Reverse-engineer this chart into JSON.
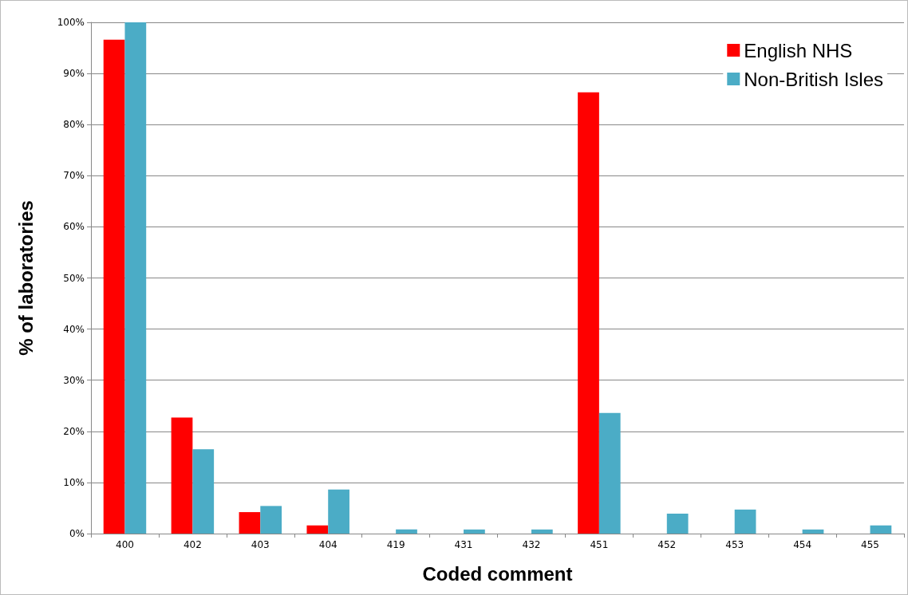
{
  "chart_data": {
    "type": "bar",
    "xlabel": "Coded comment",
    "ylabel": "% of laboratories",
    "categories": [
      "400",
      "402",
      "403",
      "404",
      "419",
      "431",
      "432",
      "451",
      "452",
      "453",
      "454",
      "455"
    ],
    "series": [
      {
        "name": "English NHS",
        "color": "#ff0000",
        "values": [
          96.6,
          22.7,
          4.2,
          1.6,
          0,
          0,
          0,
          86.3,
          0,
          0,
          0,
          0
        ]
      },
      {
        "name": "Non-British Isles",
        "color": "#4bacc6",
        "values": [
          100,
          16.5,
          5.4,
          8.6,
          0.8,
          0.8,
          0.8,
          23.6,
          3.9,
          4.7,
          0.8,
          1.6
        ]
      }
    ],
    "ylim": [
      0,
      100
    ],
    "yticks": [
      {
        "value": 0,
        "label": "0%"
      },
      {
        "value": 10,
        "label": "10%"
      },
      {
        "value": 20,
        "label": "20%"
      },
      {
        "value": 30,
        "label": "30%"
      },
      {
        "value": 40,
        "label": "40%"
      },
      {
        "value": 50,
        "label": "50%"
      },
      {
        "value": 60,
        "label": "60%"
      },
      {
        "value": 70,
        "label": "70%"
      },
      {
        "value": 80,
        "label": "80%"
      },
      {
        "value": 90,
        "label": "90%"
      },
      {
        "value": 100,
        "label": "100%"
      }
    ],
    "grid": "y",
    "legend": "top right"
  }
}
